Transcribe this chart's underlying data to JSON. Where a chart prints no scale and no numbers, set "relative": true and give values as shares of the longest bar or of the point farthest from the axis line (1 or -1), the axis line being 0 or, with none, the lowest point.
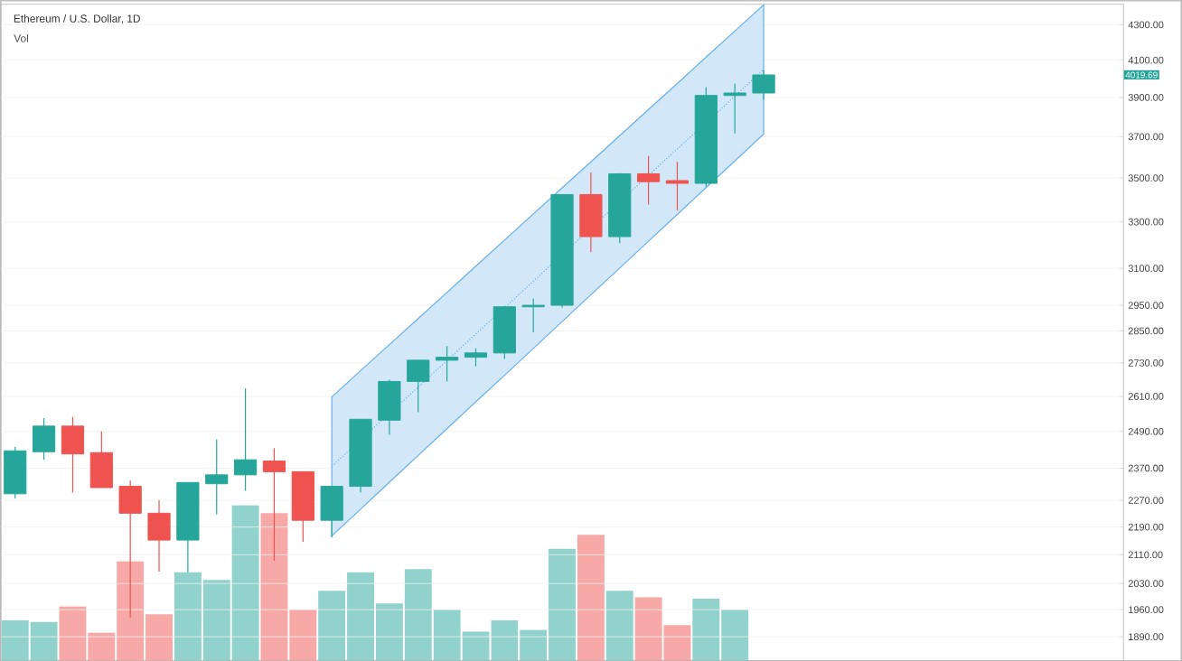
{
  "chart_data": [
    {
      "type": "bar",
      "title": "Vol",
      "relative": true,
      "categories": [
        null,
        null,
        null,
        null,
        null,
        null,
        null,
        null,
        null,
        null,
        null,
        null,
        null,
        null,
        null,
        null,
        null,
        null,
        null,
        null,
        null,
        null,
        null,
        null,
        null,
        null
      ],
      "values": [
        0.26,
        0.25,
        0.35,
        0.18,
        0.64,
        0.3,
        0.57,
        0.52,
        1,
        0.95,
        0.33,
        0.45,
        0.57,
        0.37,
        0.59,
        0.33,
        0.19,
        0.26,
        0.2,
        0.72,
        0.81,
        0.45,
        0.41,
        0.23,
        0.4,
        0.33
      ],
      "colors": [
        "#92d2cc",
        "#92d2cc",
        "#f7a9a7",
        "#f7a9a7",
        "#f7a9a7",
        "#f7a9a7",
        "#92d2cc",
        "#92d2cc",
        "#92d2cc",
        "#f7a9a7",
        "#f7a9a7",
        "#92d2cc",
        "#92d2cc",
        "#92d2cc",
        "#92d2cc",
        "#92d2cc",
        "#92d2cc",
        "#92d2cc",
        "#92d2cc",
        "#92d2cc",
        "#f7a9a7",
        "#92d2cc",
        "#f7a9a7",
        "#f7a9a7",
        "#92d2cc",
        "#92d2cc"
      ]
    },
    {
      "type": "candlestick",
      "title": "Ethereum / U.S. Dollar, 1D",
      "log": true,
      "grid": "y",
      "tick_labels": "y",
      "categories": [
        null,
        null,
        null,
        null,
        null,
        null,
        null,
        null,
        null,
        null,
        null,
        null,
        null,
        null,
        null,
        null,
        null,
        null,
        null,
        null,
        null,
        null,
        null,
        null,
        null,
        null,
        null,
        null,
        null,
        null,
        null,
        null,
        null,
        null,
        null,
        null,
        null,
        null,
        null
      ],
      "ohlc": [
        [
          2290,
          2439,
          2276,
          2426
        ],
        [
          2423,
          2535,
          2397,
          2508
        ],
        [
          2508,
          2539,
          2294,
          2416
        ],
        [
          2420,
          2490,
          2309,
          2309
        ],
        [
          2313,
          2331,
          1940,
          2231
        ],
        [
          2231,
          2270,
          2063,
          2152
        ],
        [
          2152,
          2325,
          2060,
          2325
        ],
        [
          2321,
          2463,
          2227,
          2349
        ],
        [
          2349,
          2638,
          2299,
          2397
        ],
        [
          2393,
          2435,
          2093,
          2359
        ],
        [
          2359,
          2359,
          2147,
          2210
        ],
        [
          2210,
          2313,
          2160,
          2313
        ],
        [
          2313,
          2531,
          2294,
          2531
        ],
        [
          2528,
          2669,
          2479,
          2663
        ],
        [
          2663,
          2740,
          2555,
          2740
        ],
        [
          2740,
          2793,
          2663,
          2751
        ],
        [
          2751,
          2784,
          2718,
          2767
        ],
        [
          2767,
          2948,
          2745,
          2944
        ],
        [
          2944,
          2977,
          2845,
          2950
        ],
        [
          2950,
          3423,
          2940,
          3423
        ],
        [
          3423,
          3526,
          3168,
          3235
        ],
        [
          3235,
          3523,
          3207,
          3520
        ],
        [
          3520,
          3605,
          3377,
          3483
        ],
        [
          3488,
          3577,
          3351,
          3475
        ],
        [
          3475,
          3955,
          3459,
          3911
        ],
        [
          3911,
          3974,
          3716,
          3924
        ],
        [
          3924,
          4044,
          3891,
          4019.69
        ],
        null,
        null,
        null,
        null,
        null,
        null,
        null,
        null,
        null,
        null,
        null,
        null
      ],
      "colors": [
        "#26a69a",
        "#26a69a",
        "#ef5350",
        "#ef5350",
        "#ef5350",
        "#ef5350",
        "#26a69a",
        "#26a69a",
        "#26a69a",
        "#ef5350",
        "#ef5350",
        "#26a69a",
        "#26a69a",
        "#26a69a",
        "#26a69a",
        "#26a69a",
        "#26a69a",
        "#26a69a",
        "#26a69a",
        "#26a69a",
        "#ef5350",
        "#26a69a",
        "#ef5350",
        "#ef5350",
        "#26a69a",
        "#26a69a",
        "#26a69a",
        null,
        null,
        null,
        null,
        null,
        null,
        null,
        null,
        null,
        null,
        null,
        null
      ],
      "series": [
        {
          "type": "line",
          "color": "#6aaee6",
          "line_style": "dotted",
          "values": [
            null,
            null,
            null,
            null,
            null,
            null,
            null,
            null,
            null,
            null,
            null,
            2376,
            null,
            null,
            2643,
            2739,
            2838,
            2940,
            3047,
            null,
            null,
            null,
            3513,
            3640,
            null,
            3907,
            4049,
            null,
            null,
            null,
            null,
            null,
            null,
            null,
            null,
            null,
            null,
            null,
            null
          ],
          "lower": [
            null,
            null,
            null,
            null,
            null,
            null,
            null,
            null,
            null,
            null,
            null,
            2164,
            2243,
            2326,
            2411,
            2499,
            2591,
            2685,
            2784,
            2886,
            2992,
            3101,
            3215,
            3333,
            3455,
            3581,
            3713,
            null,
            null,
            null,
            null,
            null,
            null,
            null,
            null,
            null,
            null,
            null,
            null
          ],
          "upper": [
            null,
            null,
            null,
            null,
            null,
            null,
            null,
            null,
            null,
            null,
            null,
            2608,
            2702,
            2798,
            2898,
            3001,
            3109,
            3220,
            3335,
            3454,
            3577,
            3705,
            3838,
            3974,
            4117,
            4264,
            4417,
            null,
            null,
            null,
            null,
            null,
            null,
            null,
            null,
            null,
            null,
            null,
            null
          ]
        }
      ],
      "ylim": [
        1830,
        4420
      ],
      "yticks": [
        {
          "value": 4300,
          "label": "4300.00"
        },
        {
          "value": 4100,
          "label": "4100.00"
        },
        {
          "value": 3900,
          "label": "3900.00"
        },
        {
          "value": 3700,
          "label": "3700.00"
        },
        {
          "value": 3500,
          "label": "3500.00"
        },
        {
          "value": 3300,
          "label": "3300.00"
        },
        {
          "value": 3100,
          "label": "3100.00"
        },
        {
          "value": 2950,
          "label": "2950.00"
        },
        {
          "value": 2850,
          "label": "2850.00"
        },
        {
          "value": 2730,
          "label": "2730.00"
        },
        {
          "value": 2610,
          "label": "2610.00"
        },
        {
          "value": 2490,
          "label": "2490.00"
        },
        {
          "value": 2370,
          "label": "2370.00"
        },
        {
          "value": 2270,
          "label": "2270.00"
        },
        {
          "value": 2190,
          "label": "2190.00"
        },
        {
          "value": 2110,
          "label": "2110.00"
        },
        {
          "value": 2030,
          "label": "2030.00"
        },
        {
          "value": 1960,
          "label": "1960.00"
        },
        {
          "value": 1890,
          "label": "1890.00"
        }
      ],
      "annotations": [
        "4019.69"
      ]
    }
  ]
}
